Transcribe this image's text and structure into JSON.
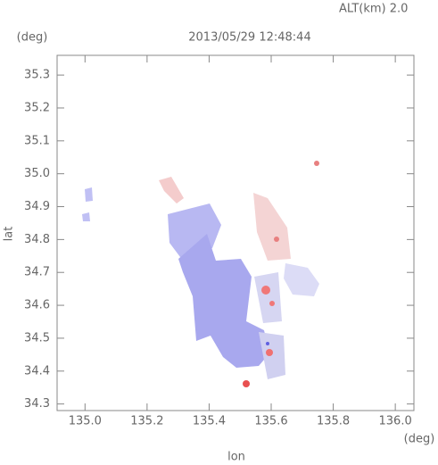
{
  "chart_data": {
    "type": "map",
    "title": "2013/05/29 12:48:44",
    "subtitle": "ALT(km) 2.0",
    "y_unit": "(deg)",
    "x_unit": "(deg)",
    "ylabel": "lat",
    "xlabel": "lon",
    "xlim": [
      134.91,
      136.06
    ],
    "ylim": [
      34.28,
      35.36
    ],
    "xticks": [
      {
        "value": 135,
        "label": "135.0"
      },
      135.2,
      135.4,
      135.6,
      135.8,
      {
        "value": 136,
        "label": "136.0"
      }
    ],
    "yticks": [
      34.3,
      34.4,
      34.5,
      34.6,
      34.7,
      34.8,
      34.9,
      {
        "value": 35,
        "label": "35.0"
      },
      35.1,
      35.2,
      35.3
    ]
  }
}
